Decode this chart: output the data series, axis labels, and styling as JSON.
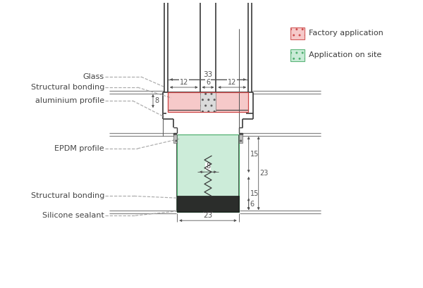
{
  "bg_color": "#ffffff",
  "line_color": "#3a3a3a",
  "dim_color": "#555555",
  "label_color": "#444444",
  "glass_line_color": "#888888",
  "red_fill": "#f5c0c0",
  "green_fill": "#c0e8d0",
  "red_edge": "#cc4444",
  "green_edge": "#44aa66",
  "labels": {
    "glass": "Glass",
    "structural_bonding_top": "Structural bonding",
    "aluminium_profile": "aluminium profile",
    "epdm_profile": "EPDM profile",
    "structural_bonding_bot": "Structural bonding",
    "silicone_sealant": "Silicone sealant"
  },
  "legend": {
    "factory": "Factory application",
    "site": "Application on site"
  },
  "dimensions": {
    "d33": "33",
    "d12l": "12",
    "d6": "6",
    "d12r": "12",
    "d8l": "8",
    "d15t": "15",
    "d8m": "8",
    "d15b": "15",
    "d23r": "23",
    "d6b": "6",
    "d23b": "23"
  }
}
